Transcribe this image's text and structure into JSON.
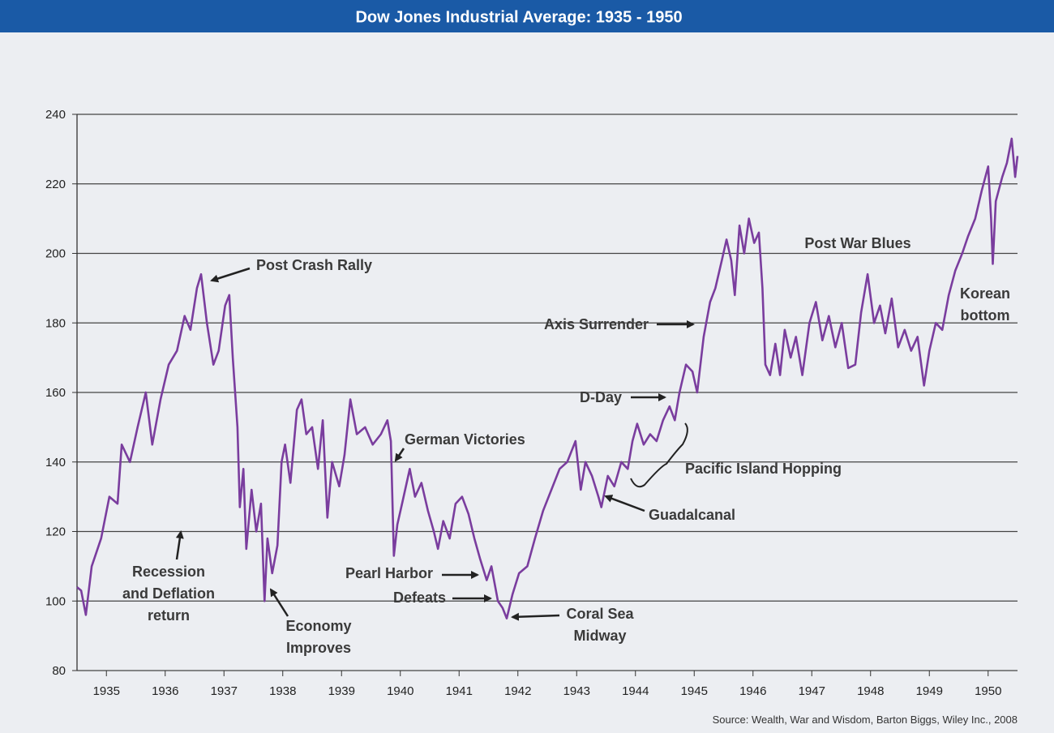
{
  "chart_data": {
    "type": "line",
    "title": "Dow Jones Industrial Average: 1935 - 1950",
    "source": "Source: Wealth, War and Wisdom, Barton Biggs, Wiley Inc., 2008",
    "color": "#7a3d9e",
    "grid": true,
    "xlim": [
      1935,
      1951
    ],
    "ylim": [
      80,
      240
    ],
    "yticks": [
      80,
      100,
      120,
      140,
      160,
      180,
      200,
      220,
      240
    ],
    "xticks": [
      {
        "value": 1935.5,
        "label": "1935"
      },
      {
        "value": 1936.5,
        "label": "1936"
      },
      {
        "value": 1937.5,
        "label": "1937"
      },
      {
        "value": 1938.5,
        "label": "1938"
      },
      {
        "value": 1939.5,
        "label": "1939"
      },
      {
        "value": 1940.5,
        "label": "1940"
      },
      {
        "value": 1941.5,
        "label": "1941"
      },
      {
        "value": 1942.5,
        "label": "1942"
      },
      {
        "value": 1943.5,
        "label": "1943"
      },
      {
        "value": 1944.5,
        "label": "1944"
      },
      {
        "value": 1945.5,
        "label": "1945"
      },
      {
        "value": 1946.5,
        "label": "1946"
      },
      {
        "value": 1947.5,
        "label": "1947"
      },
      {
        "value": 1948.5,
        "label": "1948"
      },
      {
        "value": 1949.5,
        "label": "1949"
      },
      {
        "value": 1950.5,
        "label": "1950"
      }
    ],
    "x": [
      1935.0,
      1935.07,
      1935.15,
      1935.25,
      1935.41,
      1935.55,
      1935.69,
      1935.76,
      1935.9,
      1936.03,
      1936.17,
      1936.28,
      1936.42,
      1936.56,
      1936.7,
      1936.83,
      1936.93,
      1937.04,
      1937.11,
      1937.21,
      1937.32,
      1937.41,
      1937.52,
      1937.59,
      1937.65,
      1937.73,
      1937.77,
      1937.83,
      1937.88,
      1937.97,
      1938.05,
      1938.13,
      1938.19,
      1938.24,
      1938.32,
      1938.41,
      1938.48,
      1938.54,
      1938.63,
      1938.74,
      1938.82,
      1938.9,
      1939.0,
      1939.1,
      1939.18,
      1939.26,
      1939.34,
      1939.46,
      1939.55,
      1939.65,
      1939.76,
      1939.9,
      1940.03,
      1940.17,
      1940.28,
      1940.34,
      1940.39,
      1940.45,
      1940.53,
      1940.66,
      1940.75,
      1940.86,
      1940.97,
      1941.07,
      1941.14,
      1941.23,
      1941.34,
      1941.44,
      1941.55,
      1941.66,
      1941.76,
      1941.86,
      1941.97,
      1942.05,
      1942.16,
      1942.24,
      1942.31,
      1942.41,
      1942.52,
      1942.66,
      1942.79,
      1942.93,
      1943.07,
      1943.21,
      1943.34,
      1943.48,
      1943.57,
      1943.65,
      1943.76,
      1943.87,
      1943.92,
      1944.03,
      1944.14,
      1944.26,
      1944.37,
      1944.45,
      1944.53,
      1944.64,
      1944.75,
      1944.86,
      1944.97,
      1945.08,
      1945.17,
      1945.25,
      1945.36,
      1945.47,
      1945.55,
      1945.66,
      1945.77,
      1945.86,
      1945.97,
      1946.05,
      1946.13,
      1946.19,
      1946.27,
      1946.35,
      1946.43,
      1946.52,
      1946.6,
      1946.66,
      1946.71,
      1946.79,
      1946.88,
      1946.96,
      1947.04,
      1947.14,
      1947.23,
      1947.34,
      1947.46,
      1947.57,
      1947.68,
      1947.79,
      1947.9,
      1948.01,
      1948.12,
      1948.24,
      1948.34,
      1948.45,
      1948.56,
      1948.66,
      1948.75,
      1948.86,
      1948.97,
      1949.08,
      1949.19,
      1949.3,
      1949.41,
      1949.5,
      1949.61,
      1949.72,
      1949.83,
      1949.94,
      1950.06,
      1950.16,
      1950.28,
      1950.39,
      1950.5,
      1950.55,
      1950.58,
      1950.63,
      1950.74,
      1950.82,
      1950.9,
      1950.96,
      1951.0
    ],
    "values": [
      104,
      103,
      96,
      110,
      118,
      130,
      128,
      145,
      140,
      150,
      160,
      145,
      158,
      168,
      172,
      182,
      178,
      190,
      194,
      180,
      168,
      172,
      185,
      188,
      170,
      150,
      127,
      138,
      115,
      132,
      120,
      128,
      100,
      118,
      108,
      116,
      140,
      145,
      134,
      155,
      158,
      148,
      150,
      138,
      152,
      124,
      140,
      133,
      142,
      158,
      148,
      150,
      145,
      148,
      152,
      146,
      113,
      122,
      128,
      138,
      130,
      134,
      126,
      120,
      115,
      123,
      118,
      128,
      130,
      125,
      118,
      112,
      106,
      110,
      100,
      98,
      95,
      102,
      108,
      110,
      118,
      126,
      132,
      138,
      140,
      146,
      132,
      140,
      136,
      130,
      127,
      136,
      133,
      140,
      138,
      146,
      151,
      145,
      148,
      146,
      152,
      156,
      152,
      160,
      168,
      166,
      160,
      176,
      186,
      190,
      198,
      204,
      198,
      188,
      208,
      200,
      210,
      203,
      206,
      190,
      168,
      165,
      174,
      165,
      178,
      170,
      176,
      165,
      180,
      186,
      175,
      182,
      173,
      180,
      167,
      168,
      183,
      194,
      180,
      185,
      177,
      187,
      173,
      178,
      172,
      176,
      162,
      172,
      180,
      178,
      188,
      195,
      200,
      205,
      210,
      218,
      225,
      210,
      197,
      215,
      222,
      226,
      233,
      222,
      228
    ],
    "annotations": [
      [
        "Post Crash Rally"
      ],
      [
        "Recession",
        "and Deflation",
        "return"
      ],
      [
        "Economy",
        "Improves"
      ],
      [
        "German Victories"
      ],
      [
        "Pearl Harbor"
      ],
      [
        "Defeats"
      ],
      [
        "Coral Sea",
        "Midway"
      ],
      [
        "Guadalcanal"
      ],
      [
        "D-Day"
      ],
      [
        "Pacific Island Hopping"
      ],
      [
        "Axis Surrender"
      ],
      [
        "Post War Blues"
      ],
      [
        "Korean",
        "bottom"
      ]
    ]
  }
}
